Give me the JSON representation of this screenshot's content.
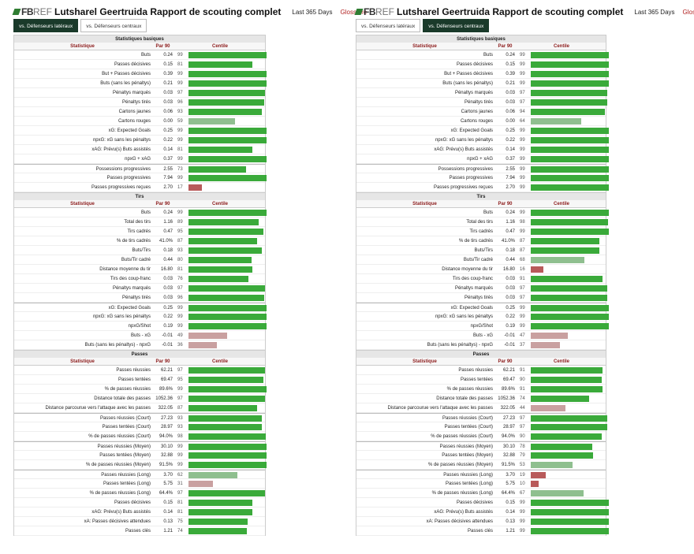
{
  "colors": {
    "accent_dark": "#1a3a2a",
    "bar_high": "#3aaa3a",
    "bar_mid": "#8fbf8f",
    "bar_low": "#c9a0a0",
    "bar_vlow": "#b85a5a",
    "link": "#b22222",
    "head_red": "#8b1a1a"
  },
  "left": {
    "logo": "FB",
    "logo_ref": "REF",
    "title": "Lutsharel Geertruida Rapport de scouting complet",
    "period": "Last 365 Days",
    "glossary": "Glossaire",
    "tabs": [
      "vs. Défenseurs latéraux",
      "vs. Défenseurs centraux"
    ],
    "active_tab": 0,
    "sections": [
      {
        "title": "Statistiques basiques",
        "headers": [
          "Statistique",
          "Par 90",
          "Centile"
        ],
        "rows": [
          [
            "Buts",
            "0.24",
            "99"
          ],
          [
            "Passes décisives",
            "0.15",
            "81"
          ],
          [
            "But + Passes décisives",
            "0.39",
            "99"
          ],
          [
            "Buts (sans les pénaltys)",
            "0.21",
            "99"
          ],
          [
            "Pénaltys marqués",
            "0.03",
            "97"
          ],
          [
            "Pénaltys tirés",
            "0.03",
            "96"
          ],
          [
            "Cartons jaunes",
            "0.06",
            "93"
          ],
          [
            "Cartons rouges",
            "0.00",
            "59"
          ],
          [
            "xG: Expected Goals",
            "0.25",
            "99"
          ],
          [
            "npxG: xG sans les pénaltys",
            "0.22",
            "99"
          ],
          [
            "xAG: Prévu(s) Buts assistés",
            "0.14",
            "81"
          ],
          [
            "npxG + xAG",
            "0.37",
            "99"
          ],
          [
            "Possessions progressives",
            "2.55",
            "73",
            "sep"
          ],
          [
            "Passes progressives",
            "7.94",
            "99"
          ],
          [
            "Passes progressives reçues",
            "2.70",
            "17"
          ]
        ]
      },
      {
        "title": "Tirs",
        "headers": [
          "Statistique",
          "Par 90",
          "Centile"
        ],
        "rows": [
          [
            "Buts",
            "0.24",
            "99"
          ],
          [
            "Total des tirs",
            "1.16",
            "89"
          ],
          [
            "Tirs cadrés",
            "0.47",
            "95"
          ],
          [
            "% de tirs cadrés",
            "41.0%",
            "87"
          ],
          [
            "Buts/Tirs",
            "0.18",
            "93"
          ],
          [
            "Buts/Tir cadré",
            "0.44",
            "80"
          ],
          [
            "Distance moyenne du tir",
            "16.80",
            "81"
          ],
          [
            "Tirs des coup-franc",
            "0.03",
            "76"
          ],
          [
            "Pénaltys marqués",
            "0.03",
            "97"
          ],
          [
            "Pénaltys tirés",
            "0.03",
            "96"
          ],
          [
            "xG: Expected Goals",
            "0.25",
            "99",
            "sep"
          ],
          [
            "npxG: xG sans les pénaltys",
            "0.22",
            "99"
          ],
          [
            "npxG/Shot",
            "0.19",
            "99"
          ],
          [
            "Buts - xG",
            "-0.01",
            "49"
          ],
          [
            "Buts (sans les pénaltys) - npxG",
            "-0.01",
            "36"
          ]
        ]
      },
      {
        "title": "Passes",
        "headers": [
          "Statistique",
          "Par 90",
          "Centile"
        ],
        "rows": [
          [
            "Passes réussies",
            "62.21",
            "97"
          ],
          [
            "Passes tentées",
            "69.47",
            "95"
          ],
          [
            "% de passes réussies",
            "89.6%",
            "99"
          ],
          [
            "Distance totale des passes",
            "1052.36",
            "97"
          ],
          [
            "Distance parcourue vers l'attaque avec les passes",
            "322.05",
            "87"
          ],
          [
            "Passes réussies (Court)",
            "27.23",
            "93",
            "sep"
          ],
          [
            "Passes tentées (Court)",
            "28.97",
            "93"
          ],
          [
            "% de passes réussies (Court)",
            "94.0%",
            "98"
          ],
          [
            "Passes réussies (Moyen)",
            "30.10",
            "99",
            "sep"
          ],
          [
            "Passes tentées (Moyen)",
            "32.88",
            "99"
          ],
          [
            "% de passes réussies (Moyen)",
            "91.5%",
            "99"
          ],
          [
            "Passes réussies (Long)",
            "3.70",
            "62",
            "sep"
          ],
          [
            "Passes tentées (Long)",
            "5.75",
            "31"
          ],
          [
            "% de passes réussies (Long)",
            "64.4%",
            "97"
          ],
          [
            "Passes décisives",
            "0.15",
            "81"
          ],
          [
            "xAG: Prévu(s) Buts assistés",
            "0.14",
            "81"
          ],
          [
            "xA: Passes décisives attendues",
            "0.13",
            "75"
          ],
          [
            "Passes clés",
            "1.21",
            "74"
          ]
        ]
      }
    ]
  },
  "right": {
    "logo": "FB",
    "logo_ref": "REF",
    "title": "Lutsharel Geertruida Rapport de scouting complet",
    "period": "Last 365 Days",
    "glossary": "Glossaire",
    "tabs": [
      "vs. Défenseurs latéraux",
      "vs. Défenseurs centraux"
    ],
    "active_tab": 1,
    "sections": [
      {
        "title": "Statistiques basiques",
        "headers": [
          "Statistique",
          "Par 90",
          "Centile"
        ],
        "rows": [
          [
            "Buts",
            "0.24",
            "99"
          ],
          [
            "Passes décisives",
            "0.15",
            "99"
          ],
          [
            "But + Passes décisives",
            "0.39",
            "99"
          ],
          [
            "Buts (sans les pénaltys)",
            "0.21",
            "99"
          ],
          [
            "Pénaltys marqués",
            "0.03",
            "97"
          ],
          [
            "Pénaltys tirés",
            "0.03",
            "97"
          ],
          [
            "Cartons jaunes",
            "0.06",
            "94"
          ],
          [
            "Cartons rouges",
            "0.00",
            "64"
          ],
          [
            "xG: Expected Goals",
            "0.25",
            "99"
          ],
          [
            "npxG: xG sans les pénaltys",
            "0.22",
            "99"
          ],
          [
            "xAG: Prévu(s) Buts assistés",
            "0.14",
            "99"
          ],
          [
            "npxG + xAG",
            "0.37",
            "99"
          ],
          [
            "Possessions progressives",
            "2.55",
            "99",
            "sep"
          ],
          [
            "Passes progressives",
            "7.94",
            "99"
          ],
          [
            "Passes progressives reçues",
            "2.70",
            "99"
          ]
        ]
      },
      {
        "title": "Tirs",
        "headers": [
          "Statistique",
          "Par 90",
          "Centile"
        ],
        "rows": [
          [
            "Buts",
            "0.24",
            "99"
          ],
          [
            "Total des tirs",
            "1.16",
            "98"
          ],
          [
            "Tirs cadrés",
            "0.47",
            "99"
          ],
          [
            "% de tirs cadrés",
            "41.0%",
            "87"
          ],
          [
            "Buts/Tirs",
            "0.18",
            "87"
          ],
          [
            "Buts/Tir cadré",
            "0.44",
            "68"
          ],
          [
            "Distance moyenne du tir",
            "16.80",
            "16"
          ],
          [
            "Tirs des coup-franc",
            "0.03",
            "91"
          ],
          [
            "Pénaltys marqués",
            "0.03",
            "97"
          ],
          [
            "Pénaltys tirés",
            "0.03",
            "97"
          ],
          [
            "xG: Expected Goals",
            "0.25",
            "99",
            "sep"
          ],
          [
            "npxG: xG sans les pénaltys",
            "0.22",
            "99"
          ],
          [
            "npxG/Shot",
            "0.19",
            "99"
          ],
          [
            "Buts - xG",
            "-0.01",
            "47"
          ],
          [
            "Buts (sans les pénaltys) - npxG",
            "-0.01",
            "37"
          ]
        ]
      },
      {
        "title": "Passes",
        "headers": [
          "Statistique",
          "Par 90",
          "Centile"
        ],
        "rows": [
          [
            "Passes réussies",
            "62.21",
            "91"
          ],
          [
            "Passes tentées",
            "69.47",
            "90"
          ],
          [
            "% de passes réussies",
            "89.6%",
            "91"
          ],
          [
            "Distance totale des passes",
            "1052.36",
            "74"
          ],
          [
            "Distance parcourue vers l'attaque avec les passes",
            "322.05",
            "44"
          ],
          [
            "Passes réussies (Court)",
            "27.23",
            "97",
            "sep"
          ],
          [
            "Passes tentées (Court)",
            "28.97",
            "97"
          ],
          [
            "% de passes réussies (Court)",
            "94.0%",
            "90"
          ],
          [
            "Passes réussies (Moyen)",
            "30.10",
            "78",
            "sep"
          ],
          [
            "Passes tentées (Moyen)",
            "32.88",
            "79"
          ],
          [
            "% de passes réussies (Moyen)",
            "91.5%",
            "53"
          ],
          [
            "Passes réussies (Long)",
            "3.70",
            "19",
            "sep"
          ],
          [
            "Passes tentées (Long)",
            "5.75",
            "10"
          ],
          [
            "% de passes réussies (Long)",
            "64.4%",
            "67"
          ],
          [
            "Passes décisives",
            "0.15",
            "99"
          ],
          [
            "xAG: Prévu(s) Buts assistés",
            "0.14",
            "99"
          ],
          [
            "xA: Passes décisives attendues",
            "0.13",
            "99"
          ],
          [
            "Passes clés",
            "1.21",
            "99"
          ]
        ]
      }
    ]
  }
}
